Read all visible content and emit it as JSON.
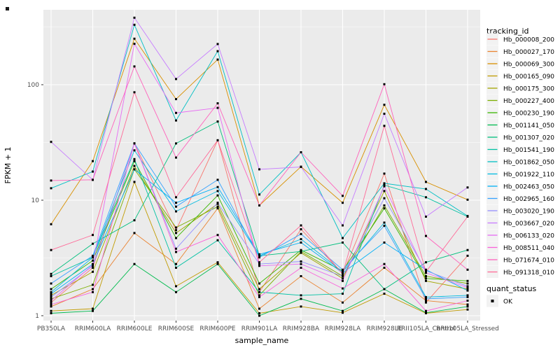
{
  "chart_data": {
    "type": "line",
    "title": "",
    "xlabel": "sample_name",
    "ylabel": "FPKM + 1",
    "y_scale": "log10",
    "y_ticks": [
      1,
      10,
      100
    ],
    "ylim": [
      0.9,
      445
    ],
    "grid": true,
    "legend_position": "right",
    "categories": [
      "PB350LA",
      "RRIM600LA",
      "RRIM600LE",
      "RRIM600SE",
      "RRIM600PE",
      "RRIM901LA",
      "RRIM928BA",
      "RRIM928LA",
      "RRIM928LE",
      "RRII105LA_Control",
      "RRII105LA_Stressed"
    ],
    "series": [
      {
        "name": "Hb_000008_200",
        "color": "#F8766D",
        "values": [
          1.3,
          2.6,
          31,
          5.5,
          33,
          1.6,
          5.6,
          2.3,
          17,
          1.3,
          3.3
        ]
      },
      {
        "name": "Hb_000027_170",
        "color": "#EA8331",
        "values": [
          1.2,
          1.7,
          5.2,
          2.8,
          8.5,
          1.15,
          2.2,
          1.3,
          2.6,
          1.35,
          1.25
        ]
      },
      {
        "name": "Hb_000069_300",
        "color": "#D89000",
        "values": [
          6.2,
          21.8,
          250,
          75,
          165,
          9.0,
          19.5,
          9.5,
          67,
          14.4,
          10.1
        ]
      },
      {
        "name": "Hb_000165_090",
        "color": "#C09B00",
        "values": [
          1.1,
          1.15,
          14.4,
          1.8,
          2.9,
          1.05,
          1.2,
          1.06,
          1.55,
          1.05,
          1.13
        ]
      },
      {
        "name": "Hb_000175_300",
        "color": "#A3A500",
        "values": [
          1.5,
          2.4,
          19.8,
          5.2,
          9.3,
          1.7,
          3.5,
          2.1,
          12,
          2.0,
          1.7
        ]
      },
      {
        "name": "Hb_000227_400",
        "color": "#7CAE00",
        "values": [
          1.4,
          1.85,
          18.5,
          5.8,
          8.8,
          1.5,
          3.6,
          2.2,
          9.0,
          2.2,
          1.9
        ]
      },
      {
        "name": "Hb_000230_190",
        "color": "#39B600",
        "values": [
          1.7,
          3.0,
          21.8,
          4.7,
          11,
          1.9,
          3.7,
          2.45,
          8.5,
          2.1,
          2.0
        ]
      },
      {
        "name": "Hb_001141_050",
        "color": "#00BB4E",
        "values": [
          1.05,
          1.1,
          2.8,
          1.6,
          2.8,
          1.0,
          1.4,
          1.1,
          1.7,
          1.06,
          1.2
        ]
      },
      {
        "name": "Hb_001307_020",
        "color": "#00BF7D",
        "values": [
          2.3,
          4.2,
          6.7,
          31,
          48,
          3.3,
          3.6,
          4.3,
          1.7,
          2.9,
          3.7
        ]
      },
      {
        "name": "Hb_001541_190",
        "color": "#00C1A3",
        "values": [
          2.2,
          3.2,
          22.7,
          2.6,
          4.5,
          1.6,
          1.5,
          1.55,
          13.5,
          10.6,
          7.2
        ]
      },
      {
        "name": "Hb_001862_050",
        "color": "#00BFC4",
        "values": [
          12.7,
          17.7,
          330,
          49,
          195,
          11.2,
          26,
          4.7,
          14,
          12.5,
          7.3
        ]
      },
      {
        "name": "Hb_001922_110",
        "color": "#00BAE0",
        "values": [
          1.6,
          3.2,
          27,
          8.0,
          12,
          3.3,
          4.6,
          2.4,
          6.4,
          1.45,
          1.5
        ]
      },
      {
        "name": "Hb_002463_050",
        "color": "#00B0F6",
        "values": [
          1.55,
          2.8,
          18.5,
          9.5,
          13,
          3.4,
          4.3,
          2.35,
          4.3,
          2.5,
          1.65
        ]
      },
      {
        "name": "Hb_002965_160",
        "color": "#35A2FF",
        "values": [
          1.9,
          3.3,
          31,
          8.8,
          15,
          3.2,
          5.1,
          2.5,
          6.0,
          1.4,
          1.45
        ]
      },
      {
        "name": "Hb_003020_190",
        "color": "#9590FF",
        "values": [
          1.45,
          2.7,
          31,
          3.8,
          9.5,
          2.8,
          2.95,
          2.2,
          10.4,
          2.45,
          1.8
        ]
      },
      {
        "name": "Hb_003667_020",
        "color": "#C77CFF",
        "values": [
          32,
          15,
          380,
          112,
          225,
          18.5,
          19.4,
          6.05,
          56,
          7.2,
          12.9
        ]
      },
      {
        "name": "Hb_006133_020",
        "color": "#E76BF3",
        "values": [
          1.35,
          2.75,
          226,
          57,
          63,
          2.7,
          2.8,
          2.0,
          13.2,
          2.35,
          1.75
        ]
      },
      {
        "name": "Hb_008511_040",
        "color": "#FA62DB",
        "values": [
          1.25,
          1.6,
          31,
          3.56,
          5.0,
          1.45,
          2.6,
          1.72,
          2.8,
          1.1,
          1.35
        ]
      },
      {
        "name": "Hb_071674_010",
        "color": "#FF62BC",
        "values": [
          14.8,
          15,
          144,
          23.4,
          69,
          9.0,
          26,
          10.9,
          101,
          4.9,
          2.5
        ]
      },
      {
        "name": "Hb_091318_010",
        "color": "#FF6A98",
        "values": [
          3.7,
          5.0,
          86,
          10.6,
          33,
          2.9,
          6.05,
          2.3,
          44,
          2.4,
          7.2
        ]
      }
    ],
    "legend": {
      "title": "tracking_id"
    },
    "quant_legend": {
      "title": "quant_status",
      "items": [
        {
          "label": "OK",
          "marker": "black-square"
        }
      ]
    }
  },
  "style_tokens": {
    "panel_bg": "#EBEBEB",
    "grid_color": "#FFFFFF",
    "axis_text_color": "#4D4D4D",
    "title_color": "#000000",
    "point_color": "#000000",
    "legend_key_bg": "#F2F2F2"
  }
}
